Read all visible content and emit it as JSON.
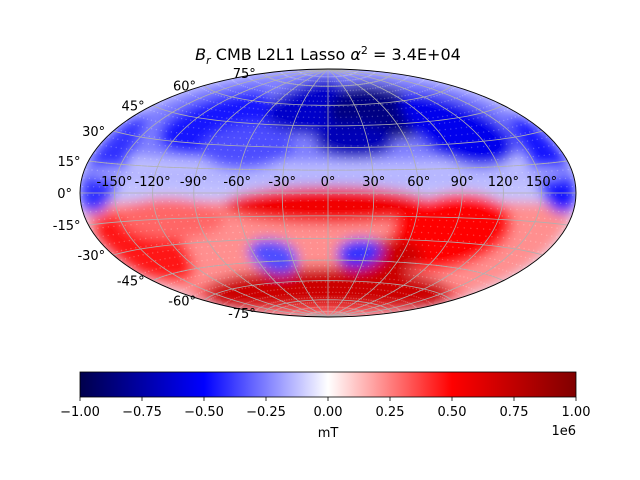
{
  "title": {
    "prefix": "B",
    "subscript": "r",
    "main": " CMB L2L1 Lasso ",
    "alpha": "α",
    "sup": "2",
    "tail": " = 3.4E+04"
  },
  "map": {
    "projection": "hammer",
    "lon_labels": [
      "-150°",
      "-120°",
      "-90°",
      "-60°",
      "-30°",
      "0°",
      "30°",
      "60°",
      "90°",
      "120°",
      "150°"
    ],
    "lon_values": [
      -150,
      -120,
      -90,
      -60,
      -30,
      0,
      30,
      60,
      90,
      120,
      150
    ],
    "lat_labels": [
      "75°",
      "60°",
      "45°",
      "30°",
      "15°",
      "0°",
      "-15°",
      "-30°",
      "-45°",
      "-60°",
      "-75°"
    ],
    "lat_values": [
      75,
      60,
      45,
      30,
      15,
      0,
      -15,
      -30,
      -45,
      -60,
      -75
    ],
    "grid": true,
    "colormap": "seismic",
    "field_regions": [
      {
        "lon": -10,
        "lat": 60,
        "a": 60,
        "b": 22,
        "v": -0.65
      },
      {
        "lon": 60,
        "lat": 55,
        "a": 60,
        "b": 20,
        "v": -0.85
      },
      {
        "lon": -100,
        "lat": 45,
        "a": 45,
        "b": 22,
        "v": -0.45
      },
      {
        "lon": 20,
        "lat": 35,
        "a": 30,
        "b": 12,
        "v": -0.7
      },
      {
        "lon": 110,
        "lat": 40,
        "a": 40,
        "b": 25,
        "v": -0.55
      },
      {
        "lon": -170,
        "lat": 15,
        "a": 25,
        "b": 25,
        "v": -0.4
      },
      {
        "lon": 170,
        "lat": 15,
        "a": 25,
        "b": 25,
        "v": -0.45
      },
      {
        "lon": -60,
        "lat": 30,
        "a": 35,
        "b": 15,
        "v": -0.35
      },
      {
        "lon": 0,
        "lat": -8,
        "a": 70,
        "b": 12,
        "v": 0.55
      },
      {
        "lon": 90,
        "lat": -25,
        "a": 45,
        "b": 25,
        "v": 0.5
      },
      {
        "lon": -150,
        "lat": -30,
        "a": 40,
        "b": 20,
        "v": 0.45
      },
      {
        "lon": 0,
        "lat": -65,
        "a": 180,
        "b": 15,
        "v": 0.7
      },
      {
        "lon": 45,
        "lat": -45,
        "a": 35,
        "b": 15,
        "v": 0.7
      },
      {
        "lon": -45,
        "lat": -42,
        "a": 20,
        "b": 12,
        "v": -0.35
      },
      {
        "lon": 25,
        "lat": -40,
        "a": 18,
        "b": 10,
        "v": -0.4
      },
      {
        "lon": -110,
        "lat": -15,
        "a": 40,
        "b": 12,
        "v": 0.3
      },
      {
        "lon": 0,
        "lat": 10,
        "a": 180,
        "b": 5,
        "v": -0.15
      }
    ]
  },
  "colorbar": {
    "ticks": [
      "−1.00",
      "−0.75",
      "−0.50",
      "−0.25",
      "0.00",
      "0.25",
      "0.50",
      "0.75",
      "1.00"
    ],
    "tick_values": [
      -1.0,
      -0.75,
      -0.5,
      -0.25,
      0.0,
      0.25,
      0.5,
      0.75,
      1.0
    ],
    "label": "mT",
    "offset": "1e6",
    "range": [
      -1000000,
      1000000
    ],
    "colors": {
      "low": "#00004c",
      "mid_low": "#0000ff",
      "center": "#ffffff",
      "mid_high": "#ff0000",
      "high": "#800000"
    }
  }
}
